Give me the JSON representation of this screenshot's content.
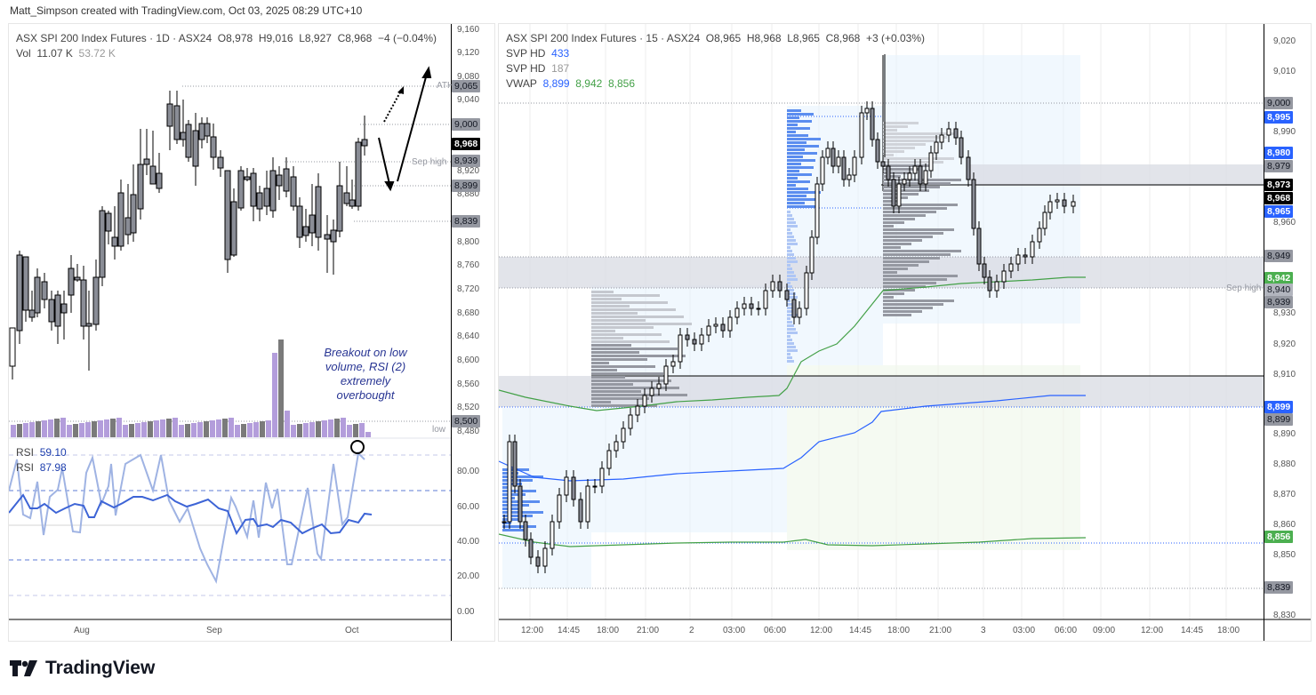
{
  "credit": "Matt_Simpson created with TradingView.com, Oct 03, 2025 08:29 UTC+10",
  "brand": {
    "name": "TradingView",
    "logo_icon": "tradingview-logo-icon"
  },
  "left_chart": {
    "symbol": "ASX SPI 200 Index Futures · 1D · ASX24",
    "ohlc": {
      "o": "O8,978",
      "h": "H9,016",
      "l": "L8,927",
      "c": "C8,968",
      "chg": "−4 (−0.04%)"
    },
    "vol_label": "Vol",
    "vol": "11.07 K",
    "vol_ma": "53.72 K",
    "price_ticks": [
      "9,160",
      "9,120",
      "9,080",
      "9,040",
      "8,920",
      "8,880",
      "8,800",
      "8,760",
      "8,720",
      "8,680",
      "8,640",
      "8,600",
      "8,560",
      "8,520",
      "8,480"
    ],
    "price_labels": [
      {
        "text": "9,065",
        "style": "gray"
      },
      {
        "text": "9,000",
        "style": "gray"
      },
      {
        "text": "8,968",
        "style": "black"
      },
      {
        "text": "8,939",
        "style": "gray"
      },
      {
        "text": "8,899",
        "style": "gray"
      },
      {
        "text": "8,839",
        "style": "gray"
      },
      {
        "text": "8,500",
        "style": "gray"
      }
    ],
    "level_labels": {
      "ath": "ATH",
      "sep_high": "Sep high",
      "low": "low"
    },
    "annotation": "Breakout on low volume, RSI (2) extremely overbought",
    "rsi": {
      "label1": "RSI",
      "value1": "59.10",
      "label2": "RSI",
      "value2": "87.98",
      "ticks": [
        "80.00",
        "60.00",
        "40.00",
        "20.00",
        "0.00"
      ]
    },
    "x_ticks": [
      "Aug",
      "Sep",
      "Oct"
    ]
  },
  "right_chart": {
    "symbol": "ASX SPI 200 Index Futures · 15 · ASX24",
    "ohlc": {
      "o": "O8,965",
      "h": "H8,968",
      "l": "L8,965",
      "c": "C8,968",
      "chg": "+3 (+0.03%)"
    },
    "svp1": {
      "label": "SVP HD",
      "value": "433"
    },
    "svp2": {
      "label": "SVP HD",
      "value": "187"
    },
    "vwap": {
      "label": "VWAP",
      "v1": "8,899",
      "v2": "8,942",
      "v3": "8,856"
    },
    "price_ticks": [
      "9,020",
      "9,010",
      "8,990",
      "8,960",
      "8,930",
      "8,920",
      "8,910",
      "8,890",
      "8,880",
      "8,870",
      "8,860",
      "8,850",
      "8,830"
    ],
    "price_labels": [
      {
        "text": "9,000",
        "style": "gray"
      },
      {
        "text": "8,995",
        "style": "blue"
      },
      {
        "text": "8,980",
        "style": "blue"
      },
      {
        "text": "8,979",
        "style": "gray"
      },
      {
        "text": "8,973",
        "style": "black"
      },
      {
        "text": "8,968",
        "style": "black"
      },
      {
        "text": "8,965",
        "style": "blue"
      },
      {
        "text": "8,949",
        "style": "gray"
      },
      {
        "text": "8,942",
        "style": "green"
      },
      {
        "text": "8,940",
        "style": "lgray"
      },
      {
        "text": "8,939",
        "style": "gray"
      },
      {
        "text": "8,899",
        "style": "blue"
      },
      {
        "text": "8,899",
        "style": "gray"
      },
      {
        "text": "8,856",
        "style": "green"
      },
      {
        "text": "8,839",
        "style": "gray"
      }
    ],
    "sep_high_label": "Sep high",
    "x_ticks": [
      "12:00",
      "14:45",
      "18:00",
      "21:00",
      "2",
      "03:00",
      "06:00",
      "12:00",
      "14:45",
      "18:00",
      "21:00",
      "3",
      "03:00",
      "06:00",
      "09:00",
      "12:00",
      "14:45",
      "18:00"
    ]
  },
  "colors": {
    "up": "#ffffff",
    "down": "#8a8d96",
    "vwap_blue": "#2962ff",
    "vwap_green": "#43a047",
    "zone": "#d8dbe3",
    "profile_blue": "#5b8def",
    "profile_gray": "#9598a1",
    "rsi_light": "#9fb3e3",
    "rsi_dark": "#3d64d6",
    "vol_purple": "#b39ddb",
    "vol_gray": "#7a7a7a"
  },
  "chart_data": [
    {
      "type": "candlestick",
      "title": "ASX SPI 200 Index Futures · 1D · ASX24",
      "ohlc_last": {
        "open": 8978,
        "high": 9016,
        "low": 8927,
        "close": 8968,
        "change": -4,
        "change_pct": -0.04
      },
      "volume": 11070,
      "volume_ma": 53720,
      "ylim": [
        8480,
        9160
      ],
      "levels": [
        {
          "name": "ATH",
          "value": 9065
        },
        {
          "value": 9000
        },
        {
          "name": "Sep high",
          "value": 8939
        },
        {
          "value": 8899
        },
        {
          "value": 8839
        },
        {
          "name": "low",
          "value": 8500
        }
      ],
      "xlabel_ticks": [
        "Aug",
        "Sep",
        "Oct"
      ],
      "rsi": {
        "rsi_14": 59.1,
        "rsi_2": 87.98,
        "ylim": [
          0,
          100
        ],
        "bands": [
          90,
          70,
          50,
          30,
          10
        ]
      },
      "annotation": "Breakout on low volume, RSI (2) extremely overbought"
    },
    {
      "type": "candlestick",
      "title": "ASX SPI 200 Index Futures · 15 · ASX24",
      "ohlc_last": {
        "open": 8965,
        "high": 8968,
        "low": 8965,
        "close": 8968,
        "change": 3,
        "change_pct": 0.03
      },
      "ylim": [
        8830,
        9025
      ],
      "vwap": {
        "blue": 8899,
        "green_upper": 8942,
        "green_lower": 8856
      },
      "svp_hd": [
        433,
        187
      ],
      "levels": [
        {
          "value": 9000
        },
        {
          "value": 8995
        },
        {
          "value": 8980
        },
        {
          "value": 8979
        },
        {
          "value": 8973
        },
        {
          "value": 8965
        },
        {
          "value": 8949
        },
        {
          "name": "Sep high",
          "value": 8940
        },
        {
          "value": 8939
        },
        {
          "value": 8899
        },
        {
          "value": 8856
        },
        {
          "value": 8839
        }
      ],
      "xlabel_ticks": [
        "12:00",
        "14:45",
        "18:00",
        "21:00",
        "2",
        "03:00",
        "06:00",
        "12:00",
        "14:45",
        "18:00",
        "21:00",
        "3",
        "03:00",
        "06:00",
        "09:00",
        "12:00",
        "14:45",
        "18:00"
      ]
    }
  ]
}
